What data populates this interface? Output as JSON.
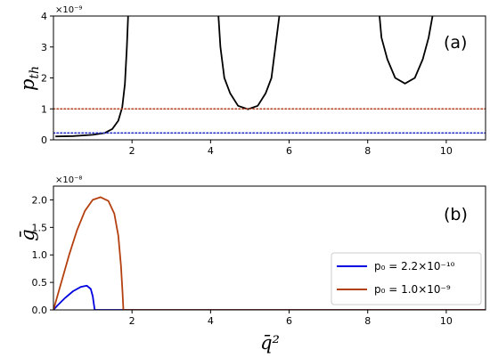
{
  "chart_data": [
    {
      "type": "line",
      "panel_label": "(a)",
      "ylabel": "p_th",
      "xlim": [
        0,
        11
      ],
      "ylim": [
        0,
        4
      ],
      "y_scale_label": "×10⁻⁹",
      "xticks": [
        2,
        4,
        6,
        8,
        10
      ],
      "yticks": [
        0,
        1,
        2,
        3,
        4
      ],
      "series": [
        {
          "color": "#000000",
          "style": "solid",
          "segments": [
            [
              [
                0.05,
                0.11
              ],
              [
                0.5,
                0.12
              ],
              [
                1.0,
                0.16
              ],
              [
                1.3,
                0.22
              ],
              [
                1.5,
                0.35
              ],
              [
                1.65,
                0.62
              ],
              [
                1.75,
                1.05
              ],
              [
                1.82,
                1.8
              ],
              [
                1.87,
                3.0
              ],
              [
                1.9,
                4.0
              ]
            ],
            [
              [
                4.2,
                4.0
              ],
              [
                4.25,
                3.0
              ],
              [
                4.35,
                2.0
              ],
              [
                4.5,
                1.5
              ],
              [
                4.7,
                1.1
              ],
              [
                4.95,
                0.99
              ],
              [
                5.2,
                1.1
              ],
              [
                5.4,
                1.5
              ],
              [
                5.55,
                2.0
              ],
              [
                5.65,
                3.0
              ],
              [
                5.75,
                4.0
              ]
            ],
            [
              [
                8.3,
                4.0
              ],
              [
                8.35,
                3.3
              ],
              [
                8.5,
                2.6
              ],
              [
                8.7,
                2.0
              ],
              [
                8.95,
                1.82
              ],
              [
                9.2,
                2.0
              ],
              [
                9.4,
                2.6
              ],
              [
                9.55,
                3.3
              ],
              [
                9.65,
                4.0
              ]
            ]
          ]
        },
        {
          "color": "#b5401a",
          "style": "dotted",
          "y": 1.0
        },
        {
          "color": "#2d35c8",
          "style": "dotted",
          "y": 0.22
        }
      ]
    },
    {
      "type": "line",
      "panel_label": "(b)",
      "ylabel": "ḡ",
      "xlabel": "q̄²",
      "xlim": [
        0,
        11
      ],
      "ylim": [
        0,
        2.25
      ],
      "y_scale_label": "×10⁻⁸",
      "xticks": [
        2,
        4,
        6,
        8,
        10
      ],
      "yticks": [
        0.0,
        0.5,
        1.0,
        1.5,
        2.0
      ],
      "ytick_labels": [
        "0.0",
        "0.5",
        "1.0",
        "1.5",
        "2.0"
      ],
      "legend_position": "lower-right",
      "series": [
        {
          "name": "p₀ = 2.2×10⁻¹⁰",
          "color": "#0000e0",
          "points": [
            [
              0.0,
              0.0
            ],
            [
              0.1,
              0.08
            ],
            [
              0.3,
              0.22
            ],
            [
              0.5,
              0.34
            ],
            [
              0.7,
              0.42
            ],
            [
              0.85,
              0.44
            ],
            [
              0.95,
              0.38
            ],
            [
              1.0,
              0.25
            ],
            [
              1.05,
              0.0
            ],
            [
              11.0,
              0.0
            ]
          ]
        },
        {
          "name": "p₀ = 1.0×10⁻⁹",
          "color": "#b5400f",
          "points": [
            [
              0.0,
              0.0
            ],
            [
              0.2,
              0.5
            ],
            [
              0.4,
              1.0
            ],
            [
              0.6,
              1.45
            ],
            [
              0.8,
              1.8
            ],
            [
              1.0,
              2.0
            ],
            [
              1.2,
              2.05
            ],
            [
              1.4,
              1.98
            ],
            [
              1.55,
              1.75
            ],
            [
              1.65,
              1.35
            ],
            [
              1.72,
              0.8
            ],
            [
              1.76,
              0.3
            ],
            [
              1.78,
              0.0
            ],
            [
              11.0,
              0.0
            ]
          ]
        }
      ]
    }
  ]
}
